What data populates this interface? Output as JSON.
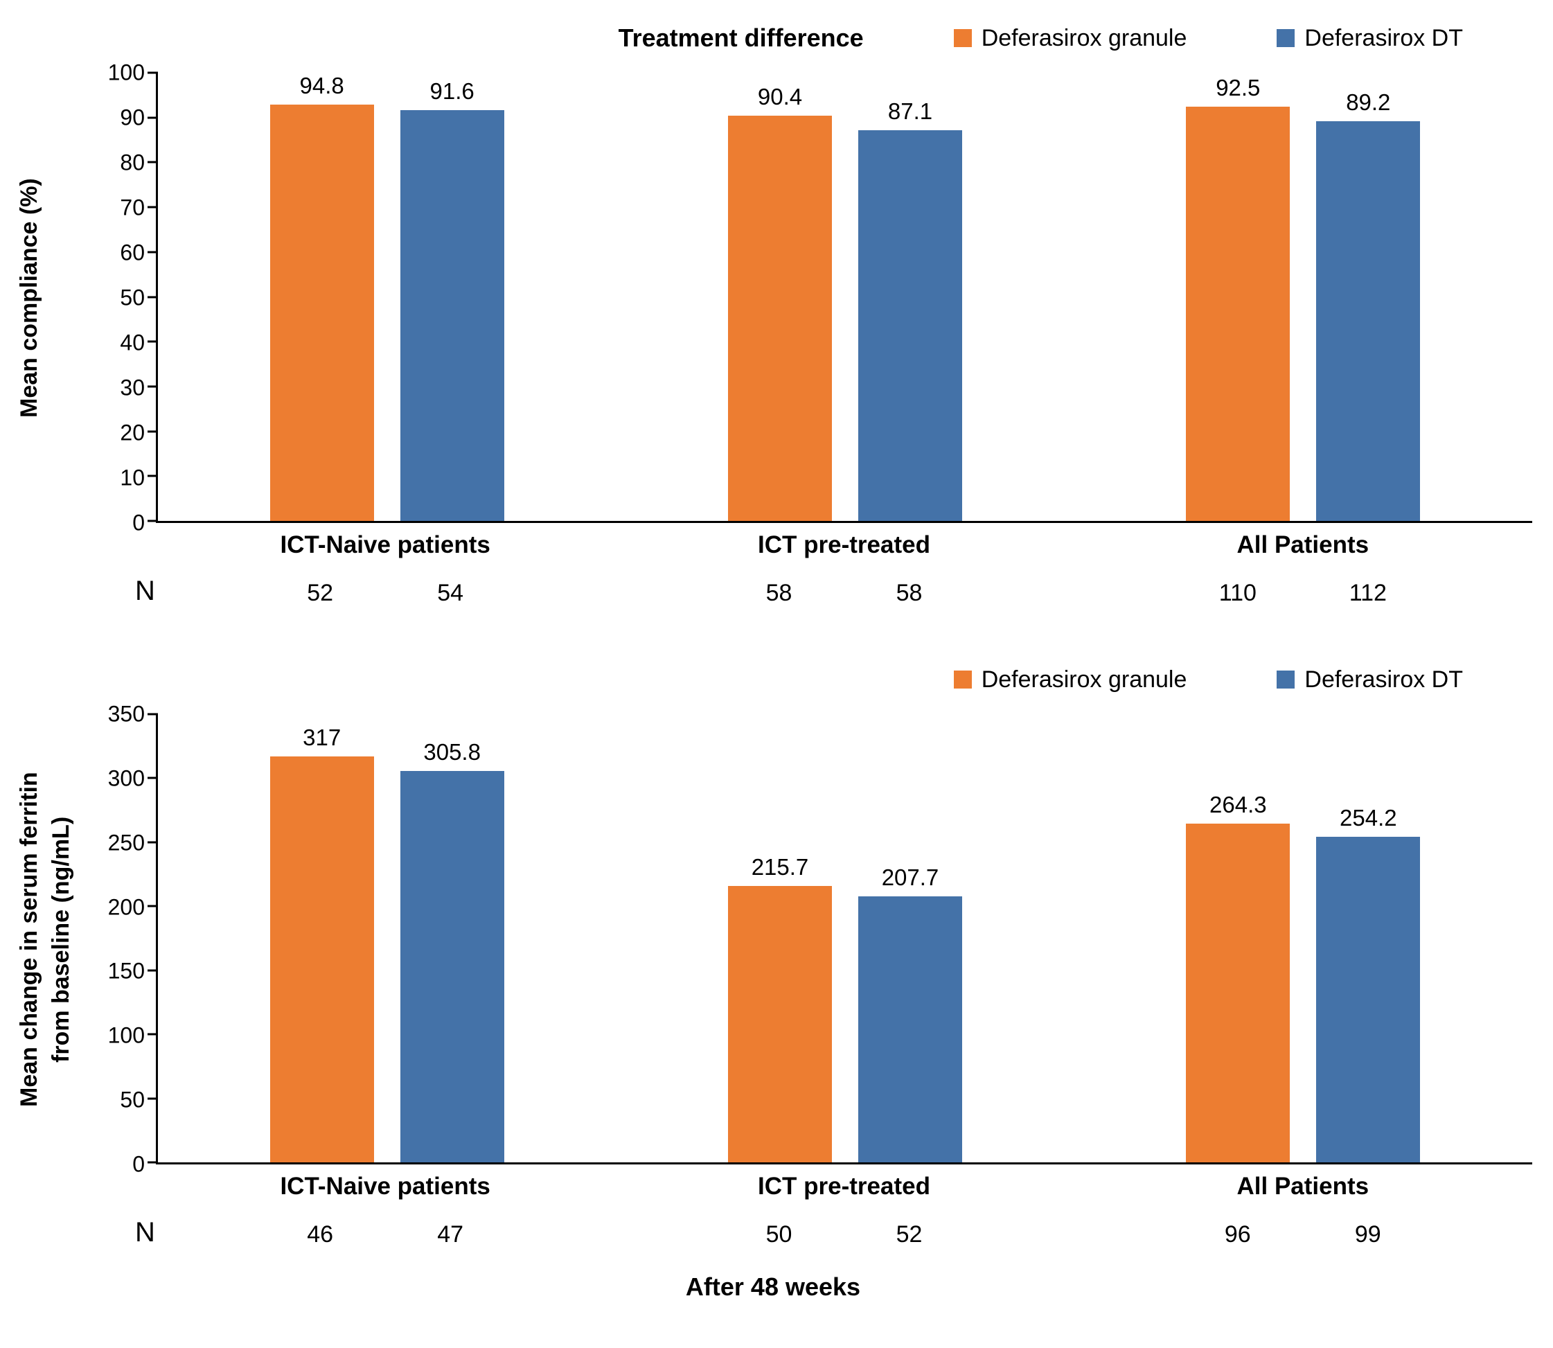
{
  "colors": {
    "granule": "#ED7D31",
    "dt": "#4472A8"
  },
  "legend": [
    {
      "key": "granule",
      "label": "Deferasirox granule"
    },
    {
      "key": "dt",
      "label": "Deferasirox DT"
    }
  ],
  "n_label": "N",
  "chart_data": [
    {
      "type": "bar",
      "title": "Treatment difference",
      "ylabel_lines": [
        "Mean compliance (%)"
      ],
      "ylim": [
        0,
        100
      ],
      "ytick": 10,
      "legend_position": "top-right",
      "grid": false,
      "categories": [
        "ICT-Naive patients",
        "ICT pre-treated",
        "All Patients"
      ],
      "series": [
        {
          "name": "Deferasirox granule",
          "color_key": "granule",
          "values": [
            94.8,
            90.4,
            92.5
          ]
        },
        {
          "name": "Deferasirox DT",
          "color_key": "dt",
          "values": [
            91.6,
            87.1,
            89.2
          ]
        }
      ],
      "n_values": [
        [
          52,
          54
        ],
        [
          58,
          58
        ],
        [
          110,
          112
        ]
      ]
    },
    {
      "type": "bar",
      "title": "",
      "ylabel_lines": [
        "Mean change in serum ferritin",
        "from baseline (ng/mL)"
      ],
      "xlabel": "After 48 weeks",
      "ylim": [
        0,
        350
      ],
      "ytick": 50,
      "legend_position": "top-right",
      "grid": false,
      "categories": [
        "ICT-Naive patients",
        "ICT pre-treated",
        "All Patients"
      ],
      "series": [
        {
          "name": "Deferasirox granule",
          "color_key": "granule",
          "values": [
            317,
            215.7,
            264.3
          ]
        },
        {
          "name": "Deferasirox DT",
          "color_key": "dt",
          "values": [
            305.8,
            207.7,
            254.2
          ]
        }
      ],
      "n_values": [
        [
          46,
          47
        ],
        [
          50,
          52
        ],
        [
          96,
          99
        ]
      ]
    }
  ]
}
